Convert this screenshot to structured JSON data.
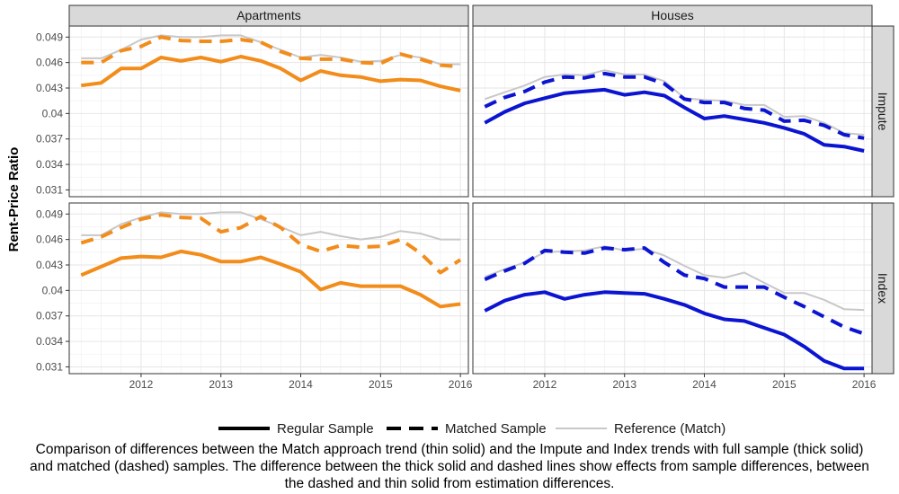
{
  "chart_data": {
    "type": "line",
    "ylabel": "Rent-Price Ratio",
    "xlabel": "",
    "xlim": [
      2011.1,
      2016.1
    ],
    "ylim": [
      0.0302,
      0.0503
    ],
    "x_ticks": [
      2012,
      2013,
      2014,
      2015,
      2016
    ],
    "y_ticks": [
      0.031,
      0.034,
      0.037,
      0.04,
      0.043,
      0.046,
      0.049
    ],
    "y_tick_labels": [
      "0.031",
      "0.034",
      "0.037",
      "0.04",
      "0.043",
      "0.046",
      "0.049"
    ],
    "columns": [
      "Apartments",
      "Houses"
    ],
    "rows": [
      "Impute",
      "Index"
    ],
    "colors": {
      "Apartments": "#f28c1a",
      "Houses": "#0b14d0",
      "Reference": "#c8c8c8"
    },
    "grid": true,
    "legend_position": "bottom",
    "legend": [
      {
        "key": "regular",
        "label": "Regular Sample",
        "style": "thick solid"
      },
      {
        "key": "matched",
        "label": "Matched Sample",
        "style": "thick dashed"
      },
      {
        "key": "reference",
        "label": "Reference (Match)",
        "style": "thin solid"
      }
    ],
    "x": [
      2011.25,
      2011.5,
      2011.75,
      2012.0,
      2012.25,
      2012.5,
      2012.75,
      2013.0,
      2013.25,
      2013.5,
      2013.75,
      2014.0,
      2014.25,
      2014.5,
      2014.75,
      2015.0,
      2015.25,
      2015.5,
      2015.75,
      2016.0
    ],
    "panels": [
      {
        "facet_col": "Apartments",
        "facet_row": "Impute",
        "series": [
          {
            "key": "reference",
            "values": [
              0.0465,
              0.0465,
              0.0475,
              0.0487,
              0.0492,
              0.049,
              0.049,
              0.0492,
              0.0492,
              0.0484,
              0.0475,
              0.0466,
              0.0469,
              0.0466,
              0.0461,
              0.0462,
              0.0469,
              0.0466,
              0.0458,
              0.0458
            ]
          },
          {
            "key": "matched",
            "values": [
              0.046,
              0.046,
              0.0474,
              0.0479,
              0.049,
              0.0486,
              0.0485,
              0.0485,
              0.0487,
              0.0484,
              0.0473,
              0.0465,
              0.0464,
              0.0464,
              0.046,
              0.0459,
              0.047,
              0.0464,
              0.0457,
              0.0455
            ]
          },
          {
            "key": "regular",
            "values": [
              0.0433,
              0.0436,
              0.0453,
              0.0453,
              0.0466,
              0.0462,
              0.0466,
              0.0461,
              0.0467,
              0.0462,
              0.0453,
              0.0439,
              0.045,
              0.0445,
              0.0443,
              0.0438,
              0.044,
              0.0439,
              0.0432,
              0.0427
            ]
          }
        ]
      },
      {
        "facet_col": "Houses",
        "facet_row": "Impute",
        "series": [
          {
            "key": "reference",
            "values": [
              0.0417,
              0.0425,
              0.0433,
              0.0443,
              0.0446,
              0.0445,
              0.0451,
              0.0446,
              0.0446,
              0.0438,
              0.0418,
              0.0416,
              0.0415,
              0.041,
              0.041,
              0.0396,
              0.0397,
              0.0389,
              0.0377,
              0.0375
            ]
          },
          {
            "key": "matched",
            "values": [
              0.0408,
              0.0419,
              0.0426,
              0.0437,
              0.0443,
              0.0442,
              0.0447,
              0.0443,
              0.0443,
              0.0435,
              0.0417,
              0.0413,
              0.0413,
              0.0406,
              0.0404,
              0.0391,
              0.0392,
              0.0386,
              0.0375,
              0.0371
            ]
          },
          {
            "key": "regular",
            "values": [
              0.0389,
              0.0402,
              0.0412,
              0.0418,
              0.0424,
              0.0426,
              0.0428,
              0.0422,
              0.0425,
              0.0421,
              0.0407,
              0.0394,
              0.0397,
              0.0393,
              0.0389,
              0.0383,
              0.0376,
              0.0363,
              0.0361,
              0.0356
            ]
          }
        ]
      },
      {
        "facet_col": "Apartments",
        "facet_row": "Index",
        "series": [
          {
            "key": "reference",
            "values": [
              0.0465,
              0.0465,
              0.0478,
              0.0486,
              0.0492,
              0.049,
              0.049,
              0.0492,
              0.0492,
              0.0484,
              0.0475,
              0.0465,
              0.0469,
              0.0464,
              0.046,
              0.0463,
              0.047,
              0.0467,
              0.046,
              0.046
            ]
          },
          {
            "key": "matched",
            "values": [
              0.0456,
              0.0463,
              0.0474,
              0.0484,
              0.0489,
              0.0486,
              0.0485,
              0.0469,
              0.0474,
              0.0487,
              0.0474,
              0.0454,
              0.0446,
              0.0453,
              0.0451,
              0.0452,
              0.046,
              0.0444,
              0.0421,
              0.0436
            ]
          },
          {
            "key": "regular",
            "values": [
              0.0418,
              0.0428,
              0.0438,
              0.044,
              0.0439,
              0.0446,
              0.0442,
              0.0434,
              0.0434,
              0.0439,
              0.0431,
              0.0422,
              0.0401,
              0.0409,
              0.0405,
              0.0405,
              0.0405,
              0.0395,
              0.0381,
              0.0384
            ]
          }
        ]
      },
      {
        "facet_col": "Houses",
        "facet_row": "Index",
        "series": [
          {
            "key": "reference",
            "values": [
              0.0416,
              0.0425,
              0.0433,
              0.0445,
              0.0446,
              0.0447,
              0.0452,
              0.0447,
              0.0449,
              0.0441,
              0.0429,
              0.0418,
              0.0415,
              0.0421,
              0.0409,
              0.0397,
              0.0397,
              0.0389,
              0.0378,
              0.0377
            ]
          },
          {
            "key": "matched",
            "values": [
              0.0413,
              0.0423,
              0.0432,
              0.0447,
              0.0445,
              0.0444,
              0.045,
              0.0448,
              0.045,
              0.0433,
              0.0418,
              0.0414,
              0.0404,
              0.0404,
              0.0404,
              0.0392,
              0.0381,
              0.0369,
              0.0357,
              0.0349
            ]
          },
          {
            "key": "regular",
            "values": [
              0.0376,
              0.0388,
              0.0395,
              0.0398,
              0.039,
              0.0395,
              0.0398,
              0.0397,
              0.0396,
              0.039,
              0.0383,
              0.0373,
              0.0366,
              0.0364,
              0.0356,
              0.0348,
              0.0334,
              0.0317,
              0.0308,
              0.0308
            ]
          }
        ]
      }
    ]
  },
  "caption": "Comparison of differences between the Match approach trend (thin solid) and the Impute and Index trends with full sample (thick solid) and matched (dashed) samples. The difference between the thick solid and dashed lines show effects from sample differences, between the dashed and thin solid from estimation differences."
}
